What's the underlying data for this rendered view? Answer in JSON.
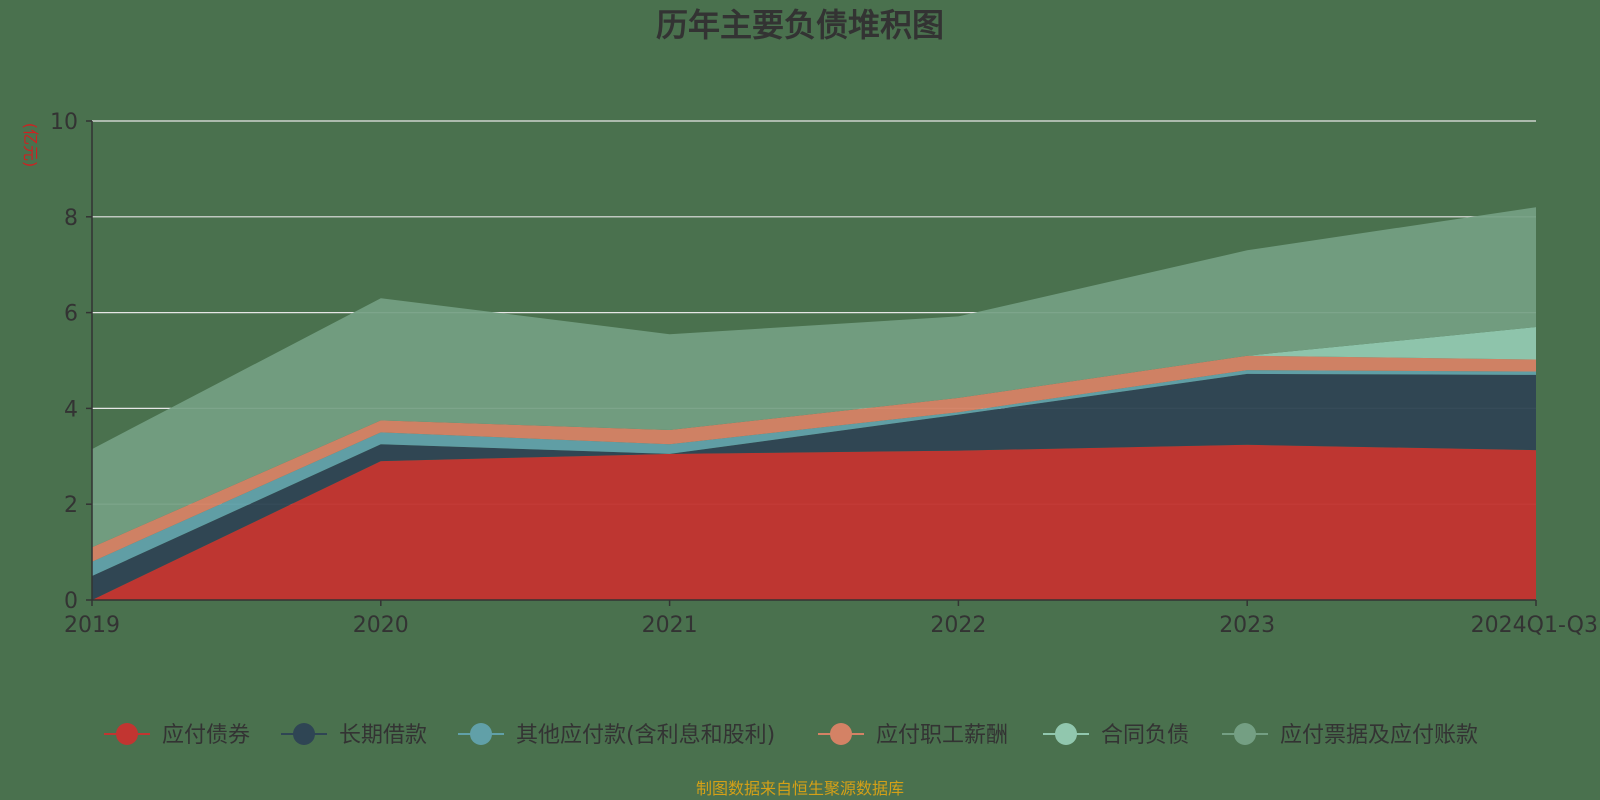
{
  "chart_data": {
    "type": "area",
    "stacked": true,
    "title": "历年主要负债堆积图",
    "unit_label": "(亿元)",
    "categories": [
      "2019",
      "2020",
      "2021",
      "2022",
      "2023",
      "2024Q1-Q3"
    ],
    "ylim": [
      0,
      10
    ],
    "yticks": [
      0,
      2,
      4,
      6,
      8,
      10
    ],
    "grid": true,
    "legend_position": "bottom",
    "series": [
      {
        "name": "应付债券",
        "color": "#c23531",
        "values": [
          0.0,
          2.9,
          3.05,
          3.12,
          3.24,
          3.13
        ]
      },
      {
        "name": "长期借款",
        "color": "#2f4554",
        "values": [
          0.5,
          0.35,
          0.0,
          0.75,
          1.48,
          1.57
        ]
      },
      {
        "name": "其他应付款(含利息和股利)",
        "color": "#61a0a8",
        "values": [
          0.3,
          0.25,
          0.2,
          0.05,
          0.08,
          0.07
        ]
      },
      {
        "name": "应付职工薪酬",
        "color": "#d48265",
        "values": [
          0.3,
          0.25,
          0.3,
          0.3,
          0.3,
          0.25
        ]
      },
      {
        "name": "合同负债",
        "color": "#91c7ae",
        "values": [
          0.0,
          0.0,
          0.0,
          0.0,
          0.0,
          0.68
        ]
      },
      {
        "name": "应付票据及应付账款",
        "color": "#749f83",
        "values": [
          2.05,
          2.55,
          2.0,
          1.7,
          2.2,
          2.5
        ]
      }
    ]
  },
  "source_text": "制图数据来自恒生聚源数据库"
}
